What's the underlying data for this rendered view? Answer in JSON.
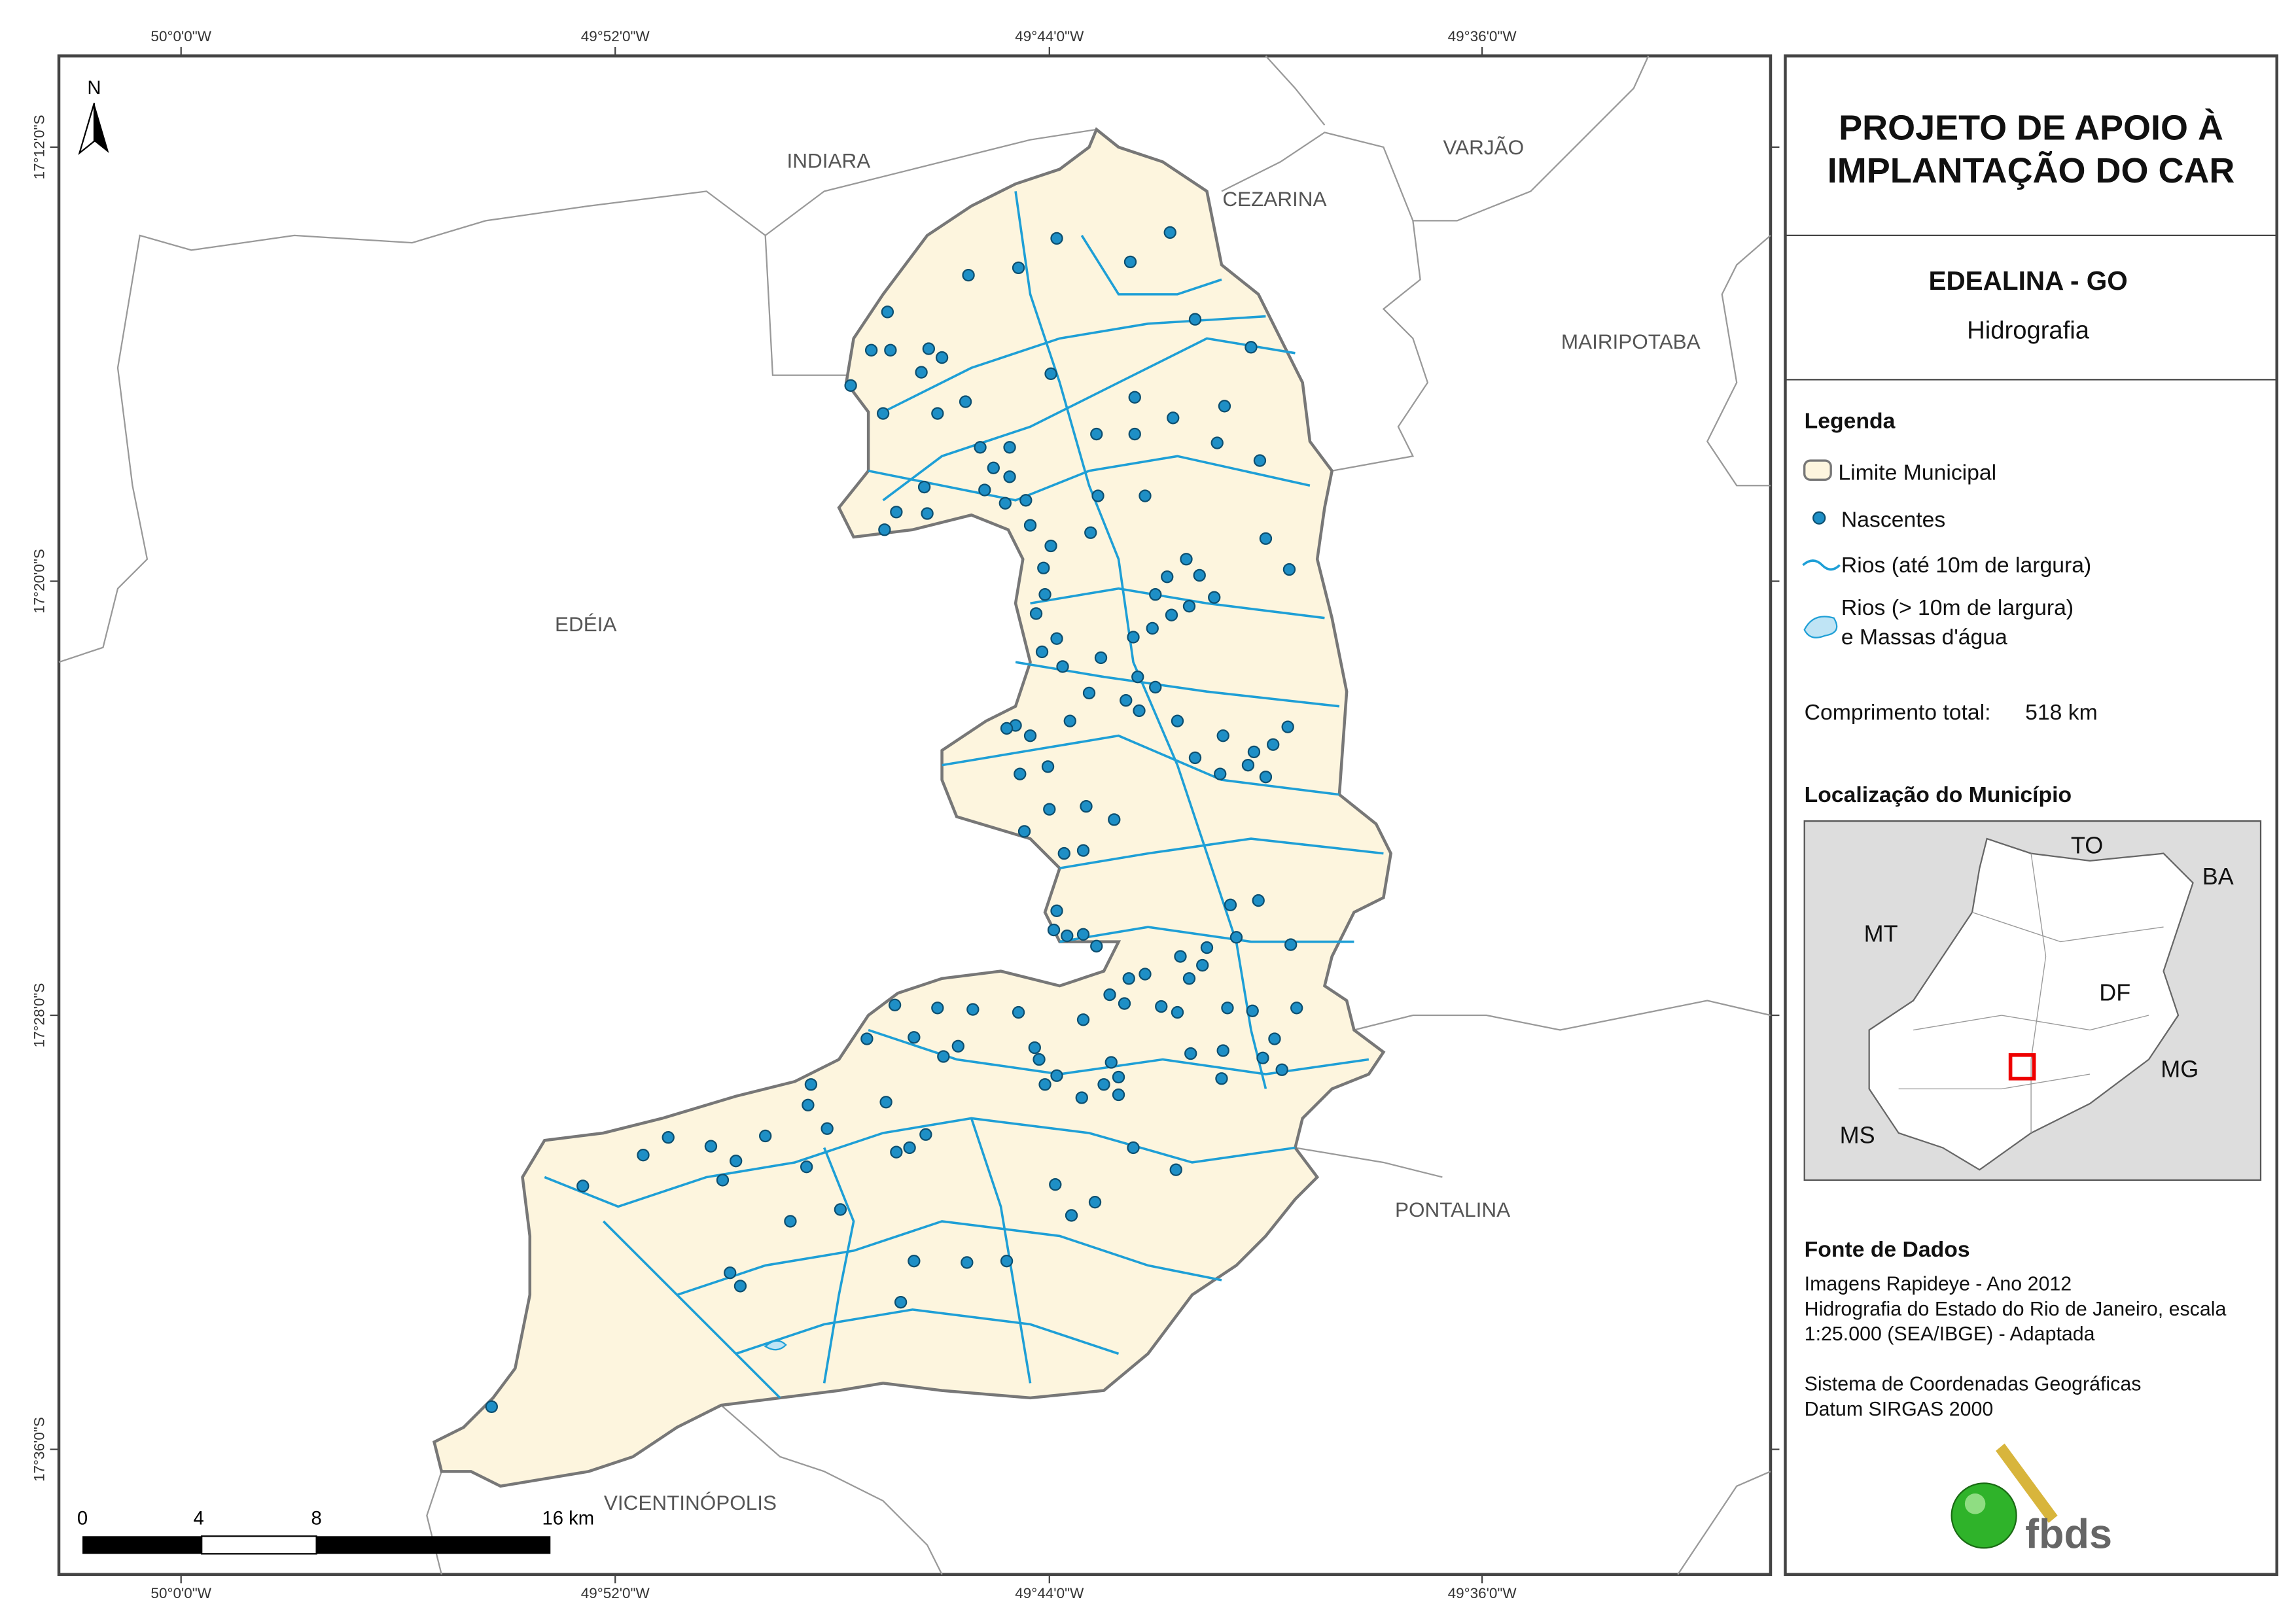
{
  "header": {
    "title": [
      "PROJETO DE APOIO À",
      "IMPLANTAÇÃO DO CAR"
    ],
    "place": "EDEALINA - GO",
    "theme": "Hidrografia"
  },
  "legend": {
    "title": "Legenda",
    "items": [
      "Limite Municipal",
      "Nascentes",
      "Rios (até 10m de largura)",
      [
        "Rios (> 10m de largura)",
        "e Massas d'água"
      ]
    ]
  },
  "total_length": {
    "label": "Comprimento total:",
    "value": "518 km"
  },
  "location": {
    "title": "Localização do Município",
    "labels": [
      "TO",
      "BA",
      "MT",
      "DF",
      "MG",
      "MS"
    ]
  },
  "sources": {
    "title": "Fonte de Dados",
    "lines": [
      "Imagens Rapideye - Ano 2012",
      "Hidrografia do Estado do Rio de Janeiro, escala",
      "1:25.000 (SEA/IBGE) - Adaptada",
      "Sistema de Coordenadas Geográficas",
      "Datum SIRGAS 2000"
    ]
  },
  "map": {
    "labels": [
      "INDIARA",
      "CEZARINA",
      "VARJÃO",
      "MAIRIPOTABA",
      "EDÉIA",
      "PONTALINA",
      "VICENTINÓPOLIS"
    ],
    "north": "N",
    "scale_bar": [
      "0",
      "4",
      "8",
      "16 km"
    ]
  },
  "coordinates": {
    "longitude": [
      "50°0'0\"W",
      "49°52'0\"W",
      "49°44'0\"W",
      "49°36'0\"W"
    ],
    "latitude": [
      "17°12'0\"S",
      "17°20'0\"S",
      "17°28'0\"S",
      "17°36'0\"S"
    ]
  },
  "logo": "fbds"
}
